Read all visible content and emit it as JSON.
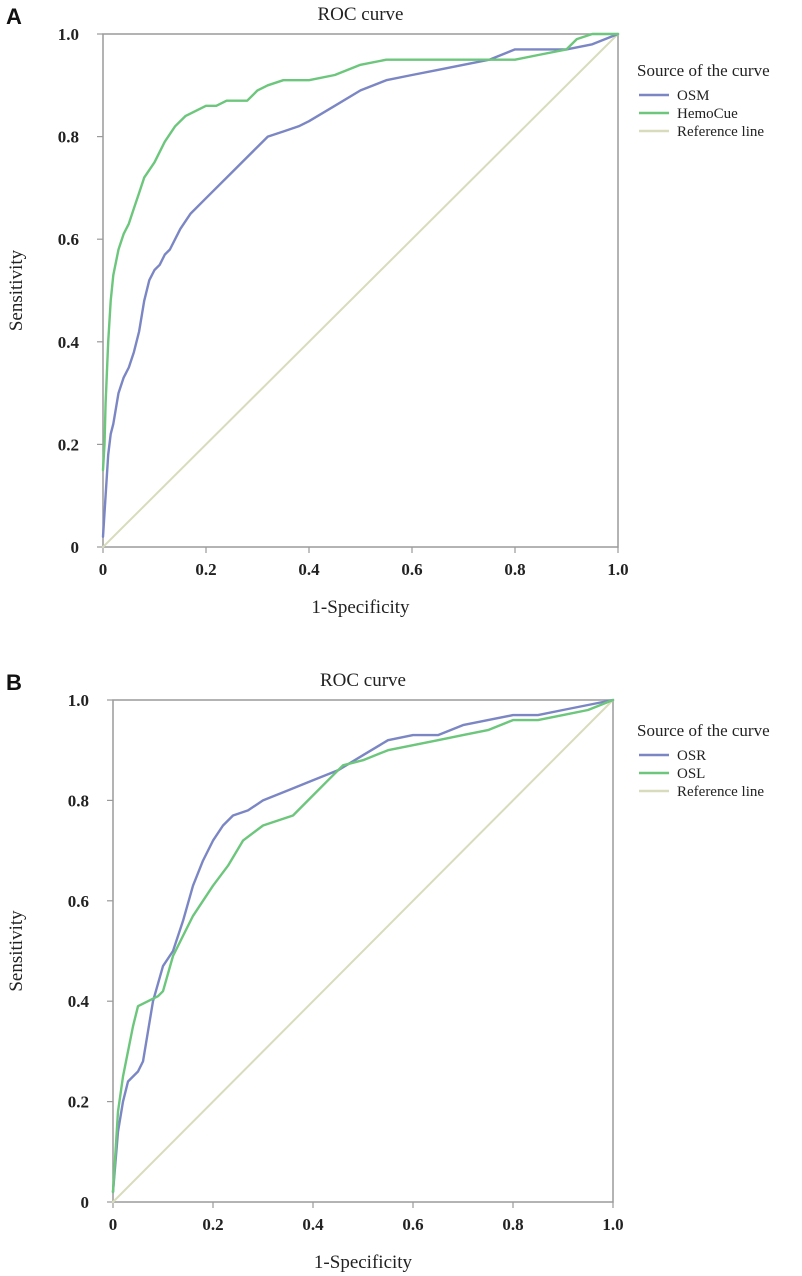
{
  "chart_data": [
    {
      "type": "line",
      "panel_label": "A",
      "title": "ROC curve",
      "xlabel": "1-Specificity",
      "ylabel": "Sensitivity",
      "xlim": [
        0,
        1
      ],
      "ylim": [
        0,
        1
      ],
      "x_ticks": [
        0,
        0.2,
        0.4,
        0.6,
        0.8,
        1.0
      ],
      "x_tick_labels": [
        "0",
        "0.2",
        "0.4",
        "0.6",
        "0.8",
        "1.0"
      ],
      "y_ticks": [
        0,
        0.2,
        0.4,
        0.6,
        0.8,
        1.0
      ],
      "y_tick_labels": [
        "0",
        "0.2",
        "0.4",
        "0.6",
        "0.8",
        "1.0"
      ],
      "grid": false,
      "legend_title": "Source of the curve",
      "legend_position": "right",
      "series": [
        {
          "name": "OSM",
          "color": "#7b86c4",
          "x": [
            0,
            0.005,
            0.01,
            0.015,
            0.02,
            0.03,
            0.04,
            0.05,
            0.06,
            0.07,
            0.08,
            0.09,
            0.1,
            0.11,
            0.12,
            0.13,
            0.15,
            0.17,
            0.2,
            0.25,
            0.28,
            0.3,
            0.32,
            0.35,
            0.38,
            0.4,
            0.45,
            0.5,
            0.55,
            0.6,
            0.65,
            0.7,
            0.75,
            0.8,
            0.85,
            0.9,
            0.95,
            1.0
          ],
          "y": [
            0.02,
            0.1,
            0.18,
            0.22,
            0.24,
            0.3,
            0.33,
            0.35,
            0.38,
            0.42,
            0.48,
            0.52,
            0.54,
            0.55,
            0.57,
            0.58,
            0.62,
            0.65,
            0.68,
            0.73,
            0.76,
            0.78,
            0.8,
            0.81,
            0.82,
            0.83,
            0.86,
            0.89,
            0.91,
            0.92,
            0.93,
            0.94,
            0.95,
            0.97,
            0.97,
            0.97,
            0.98,
            1.0
          ]
        },
        {
          "name": "HemoCue",
          "color": "#6cc67c",
          "x": [
            0,
            0.003,
            0.005,
            0.01,
            0.015,
            0.02,
            0.03,
            0.04,
            0.05,
            0.06,
            0.07,
            0.08,
            0.1,
            0.12,
            0.14,
            0.16,
            0.18,
            0.2,
            0.22,
            0.24,
            0.28,
            0.3,
            0.32,
            0.35,
            0.4,
            0.45,
            0.5,
            0.55,
            0.6,
            0.7,
            0.8,
            0.85,
            0.9,
            0.92,
            0.95,
            1.0
          ],
          "y": [
            0.15,
            0.2,
            0.28,
            0.4,
            0.48,
            0.53,
            0.58,
            0.61,
            0.63,
            0.66,
            0.69,
            0.72,
            0.75,
            0.79,
            0.82,
            0.84,
            0.85,
            0.86,
            0.86,
            0.87,
            0.87,
            0.89,
            0.9,
            0.91,
            0.91,
            0.92,
            0.94,
            0.95,
            0.95,
            0.95,
            0.95,
            0.96,
            0.97,
            0.99,
            1.0,
            1.0
          ]
        },
        {
          "name": "Reference line",
          "color": "#d9dcbc",
          "x": [
            0,
            1
          ],
          "y": [
            0,
            1
          ]
        }
      ]
    },
    {
      "type": "line",
      "panel_label": "B",
      "title": "ROC curve",
      "xlabel": "1-Specificity",
      "ylabel": "Sensitivity",
      "xlim": [
        0,
        1
      ],
      "ylim": [
        0,
        1
      ],
      "x_ticks": [
        0,
        0.2,
        0.4,
        0.6,
        0.8,
        1.0
      ],
      "x_tick_labels": [
        "0",
        "0.2",
        "0.4",
        "0.6",
        "0.8",
        "1.0"
      ],
      "y_ticks": [
        0,
        0.2,
        0.4,
        0.6,
        0.8,
        1.0
      ],
      "y_tick_labels": [
        "0",
        "0.2",
        "0.4",
        "0.6",
        "0.8",
        "1.0"
      ],
      "grid": false,
      "legend_title": "Source of the curve",
      "legend_position": "right",
      "series": [
        {
          "name": "OSR",
          "color": "#7b86c4",
          "x": [
            0,
            0.005,
            0.01,
            0.02,
            0.03,
            0.04,
            0.05,
            0.06,
            0.07,
            0.08,
            0.1,
            0.12,
            0.14,
            0.16,
            0.18,
            0.2,
            0.22,
            0.24,
            0.27,
            0.3,
            0.35,
            0.4,
            0.45,
            0.5,
            0.55,
            0.6,
            0.65,
            0.7,
            0.75,
            0.8,
            0.85,
            0.9,
            0.95,
            1.0
          ],
          "y": [
            0.02,
            0.08,
            0.14,
            0.2,
            0.24,
            0.25,
            0.26,
            0.28,
            0.34,
            0.4,
            0.47,
            0.5,
            0.56,
            0.63,
            0.68,
            0.72,
            0.75,
            0.77,
            0.78,
            0.8,
            0.82,
            0.84,
            0.86,
            0.89,
            0.92,
            0.93,
            0.93,
            0.95,
            0.96,
            0.97,
            0.97,
            0.98,
            0.99,
            1.0
          ]
        },
        {
          "name": "OSL",
          "color": "#6cc67c",
          "x": [
            0,
            0.005,
            0.01,
            0.02,
            0.03,
            0.04,
            0.05,
            0.07,
            0.09,
            0.1,
            0.12,
            0.14,
            0.16,
            0.18,
            0.2,
            0.23,
            0.26,
            0.3,
            0.33,
            0.36,
            0.4,
            0.43,
            0.46,
            0.5,
            0.55,
            0.6,
            0.65,
            0.7,
            0.75,
            0.8,
            0.85,
            0.9,
            0.95,
            1.0
          ],
          "y": [
            0.02,
            0.1,
            0.18,
            0.25,
            0.3,
            0.35,
            0.39,
            0.4,
            0.41,
            0.42,
            0.49,
            0.53,
            0.57,
            0.6,
            0.63,
            0.67,
            0.72,
            0.75,
            0.76,
            0.77,
            0.81,
            0.84,
            0.87,
            0.88,
            0.9,
            0.91,
            0.92,
            0.93,
            0.94,
            0.96,
            0.96,
            0.97,
            0.98,
            1.0
          ]
        },
        {
          "name": "Reference line",
          "color": "#d9dcbc",
          "x": [
            0,
            1
          ],
          "y": [
            0,
            1
          ]
        }
      ]
    }
  ]
}
